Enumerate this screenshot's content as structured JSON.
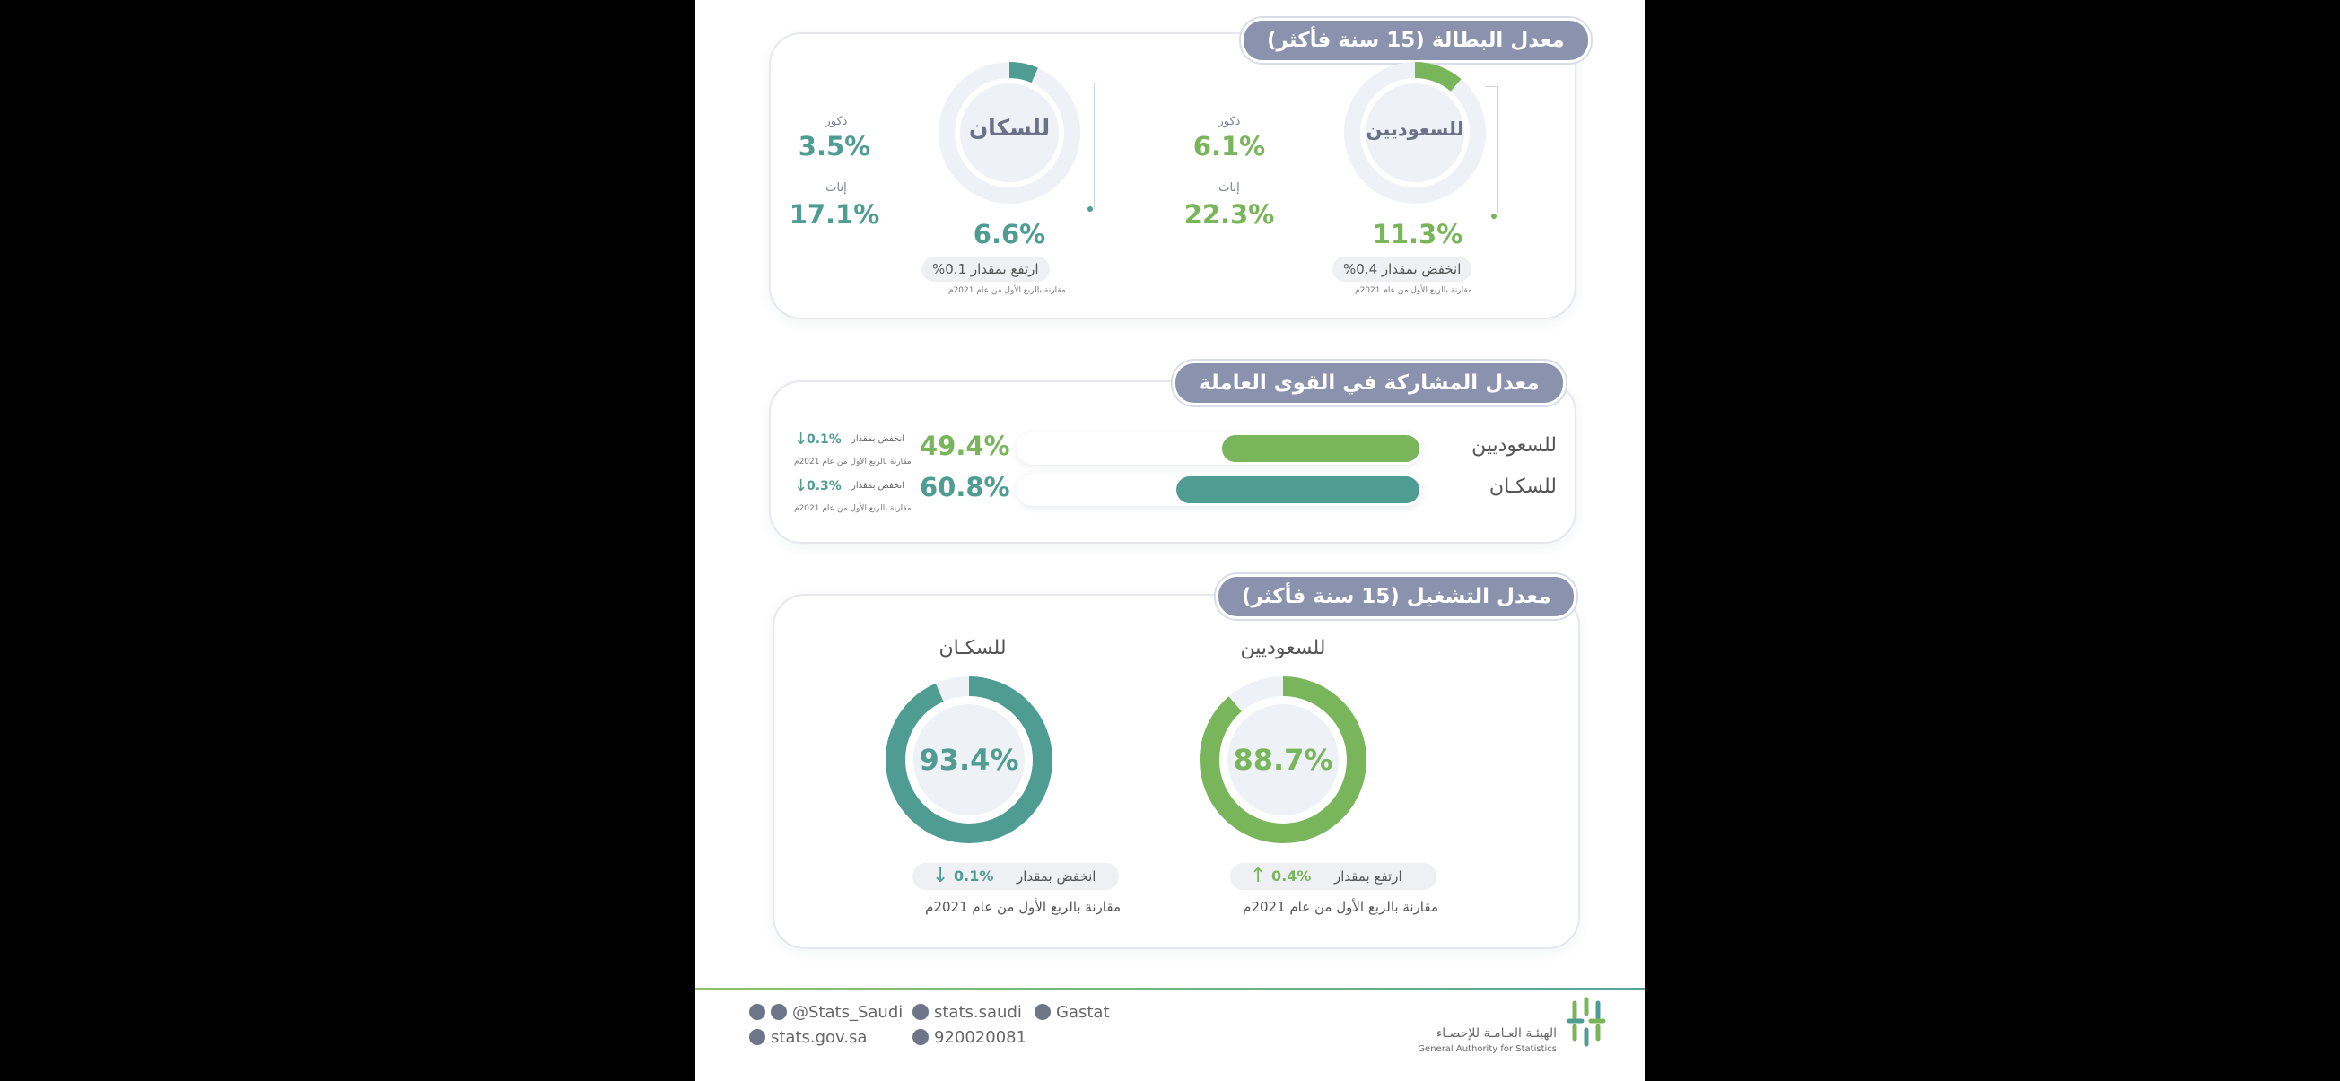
{
  "colors": {
    "teal": "#4f9c92",
    "green": "#79b55a",
    "pill": "#8a92ad"
  },
  "unemployment": {
    "title": "معدل البطالة (15 سنة فأكثر)",
    "residents": {
      "label": "للسكان",
      "value": "6.6%",
      "males_label": "ذكور",
      "males": "3.5%",
      "females_label": "إناث",
      "females": "17.1%",
      "change": "ارتفع بمقدار 0.1%",
      "compare": "مقارنة بالربع الأول من عام 2021م"
    },
    "saudis": {
      "label": "للسعوديين",
      "value": "11.3%",
      "males_label": "ذكور",
      "males": "6.1%",
      "females_label": "إناث",
      "females": "22.3%",
      "change": "انخفض بمقدار 0.4%",
      "compare": "مقارنة بالربع الأول من عام 2021م"
    }
  },
  "participation": {
    "title": "معدل المشاركة في القوى العاملة",
    "saudis": {
      "label": "للسعوديين",
      "value": "49.4%",
      "change_text": "انخفض بمقدار",
      "change_value": "0.1%",
      "compare": "مقارنة بالربع الأول من عام 2021م"
    },
    "residents": {
      "label": "للسكـان",
      "value": "60.8%",
      "change_text": "انخفض بمقدار",
      "change_value": "0.3%",
      "compare": "مقارنة بالربع الأول من عام 2021م"
    }
  },
  "employment": {
    "title": "معدل التشغيل (15 سنة فأكثر)",
    "saudis": {
      "label": "للسعوديين",
      "value": "88.7%",
      "change_text": "ارتفع بمقدار",
      "change_value": "0.4%",
      "compare": "مقارنة بالربع الأول من عام 2021م"
    },
    "residents": {
      "label": "للسكـان",
      "value": "93.4%",
      "change_text": "انخفض بمقدار",
      "change_value": "0.1%",
      "compare": "مقارنة بالربع الأول من عام 2021م"
    }
  },
  "footer": {
    "twitter": "@Stats_Saudi",
    "facebook": "stats.saudi",
    "linkedin": "Gastat",
    "website": "stats.gov.sa",
    "phone": "920020081",
    "org_ar": "الهيئـة العـامـة للإحصـاء",
    "org_en": "General Authority for Statistics"
  },
  "chart_data": [
    {
      "type": "pie",
      "title": "معدل البطالة (15 سنة فأكثر)",
      "categories": [
        "للسكان",
        "للسعوديين"
      ],
      "values": [
        6.6,
        11.3
      ],
      "series": [
        {
          "name": "ذكور",
          "values": [
            3.5,
            6.1
          ]
        },
        {
          "name": "إناث",
          "values": [
            17.1,
            22.3
          ]
        }
      ]
    },
    {
      "type": "bar",
      "title": "معدل المشاركة في القوى العاملة",
      "categories": [
        "للسعوديين",
        "للسكـان"
      ],
      "values": [
        49.4,
        60.8
      ],
      "ylim": [
        0,
        100
      ]
    },
    {
      "type": "pie",
      "title": "معدل التشغيل (15 سنة فأكثر)",
      "categories": [
        "للسعوديين",
        "للسكـان"
      ],
      "values": [
        88.7,
        93.4
      ]
    }
  ]
}
